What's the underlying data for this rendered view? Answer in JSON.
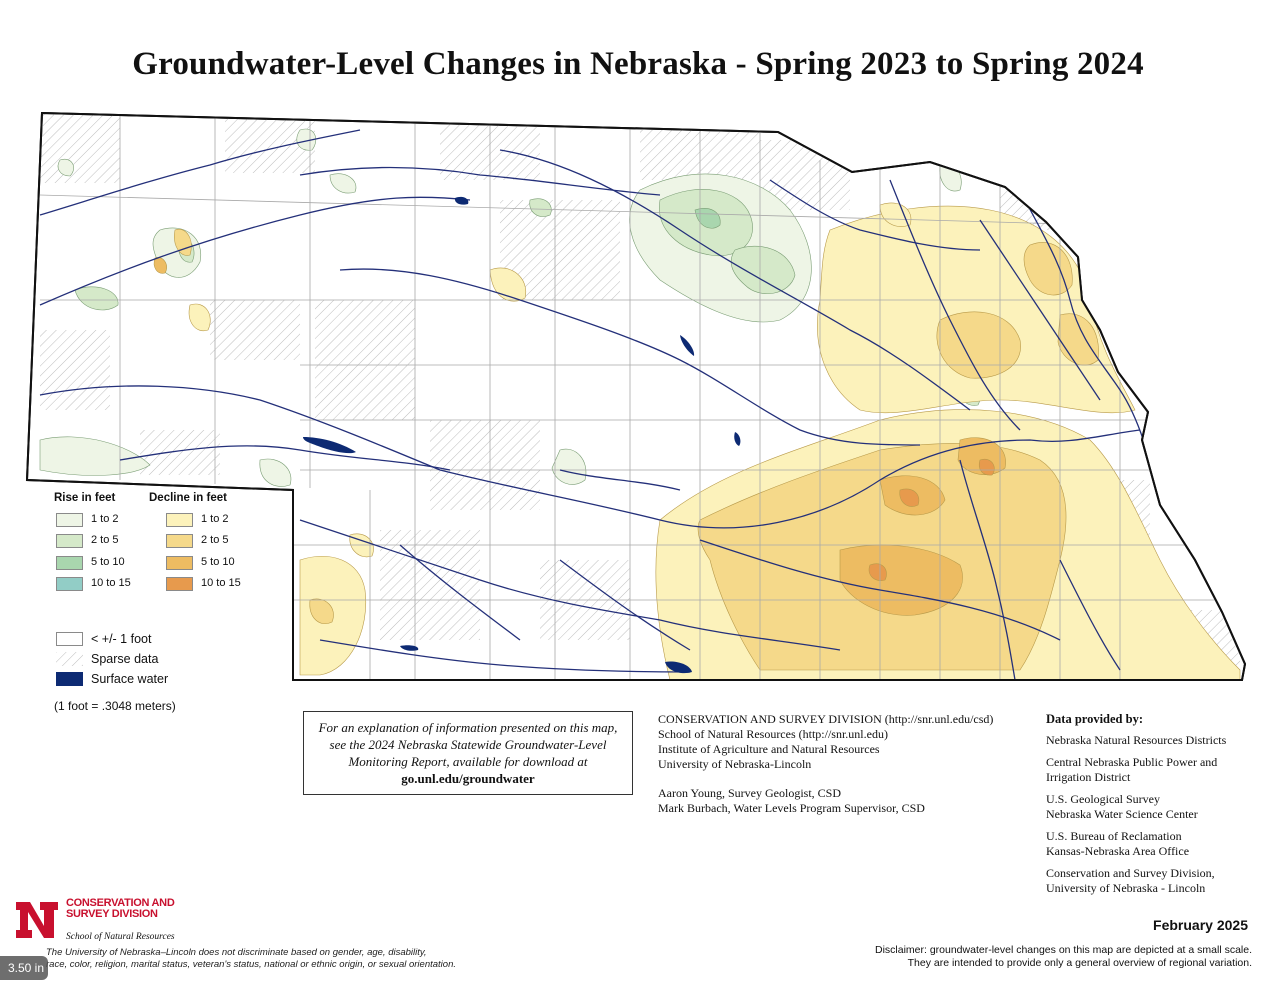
{
  "title": "Groundwater-Level Changes in Nebraska - Spring 2023 to Spring 2024",
  "colors": {
    "rise_1_2": "#eef5e6",
    "rise_2_5": "#d5e9c9",
    "rise_5_10": "#a9d6ae",
    "rise_10_15": "#92cdc6",
    "decline_1_2": "#fcf2bb",
    "decline_2_5": "#f5d98a",
    "decline_5_10": "#edbc62",
    "decline_10_15": "#e79a4d",
    "surface_water": "#0d2a73",
    "river": "#24307a",
    "county_line": "#a9a9a9"
  },
  "legend": {
    "rise_heading": "Rise in feet",
    "decline_heading": "Decline in feet",
    "rise": [
      {
        "label": "1 to 2",
        "color": "#eef5e6"
      },
      {
        "label": "2 to 5",
        "color": "#d5e9c9"
      },
      {
        "label": "5 to 10",
        "color": "#a9d6ae"
      },
      {
        "label": "10 to 15",
        "color": "#92cdc6"
      }
    ],
    "decline": [
      {
        "label": "1 to 2",
        "color": "#fcf2bb"
      },
      {
        "label": "2 to 5",
        "color": "#f5d98a"
      },
      {
        "label": "5 to 10",
        "color": "#edbc62"
      },
      {
        "label": "10 to 15",
        "color": "#e79a4d"
      }
    ],
    "no_change": "< +/- 1 foot",
    "sparse": "Sparse data",
    "surface_water": "Surface water",
    "conversion": "(1 foot = .3048 meters)"
  },
  "explanation": {
    "text": "For an explanation of information presented on this map, see the 2024 Nebraska Statewide Groundwater-Level Monitoring Report, available for download at",
    "link": "go.unl.edu/groundwater"
  },
  "csd": {
    "line1": "CONSERVATION AND SURVEY DIVISION (http://snr.unl.edu/csd)",
    "line2": "School of Natural Resources (http://snr.unl.edu)",
    "line3": "Institute of Agriculture and Natural Resources",
    "line4": "University of Nebraska-Lincoln",
    "line5": "Aaron Young, Survey Geologist, CSD",
    "line6": "Mark Burbach, Water Levels Program Supervisor, CSD"
  },
  "provided": {
    "heading": "Data provided by:",
    "items": [
      "Nebraska Natural Resources Districts",
      "Central Nebraska Public Power and",
      "Irrigation District",
      "U.S. Geological Survey",
      "Nebraska Water Science Center",
      "U.S. Bureau of Reclamation",
      "Kansas-Nebraska Area Office",
      "Conservation and Survey Division,",
      "University of Nebraska - Lincoln"
    ]
  },
  "date": "February 2025",
  "disclaimer": {
    "line1": "Disclaimer: groundwater-level changes on this map are depicted at a small scale.",
    "line2": "They are intended to provide only a general overview of regional variation."
  },
  "logo": {
    "letter": "N",
    "line1": "CONSERVATION AND",
    "line2": "SURVEY DIVISION",
    "line3": "School of Natural Resources"
  },
  "nondiscrimination": {
    "line1": "The University of Nebraska–Lincoln does not discriminate based on gender, age, disability,",
    "line2": "race, color, religion, marital status, veteran's status, national or ethnic origin, or sexual orientation."
  },
  "scale_badge": "3.50 in"
}
